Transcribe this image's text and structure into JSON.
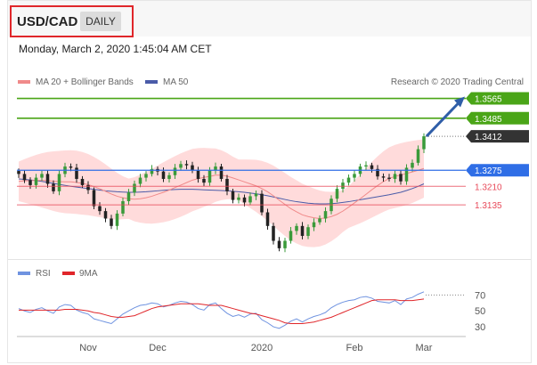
{
  "header": {
    "symbol": "USD/CAD",
    "period": "DAILY",
    "datetime": "Monday, March 2, 2020 1:45:04 AM CET"
  },
  "legend": {
    "ma20_label": "MA 20 + Bollinger Bands",
    "ma50_label": "MA 50",
    "credit": "Research © 2020 Trading Central"
  },
  "rsi_legend": {
    "rsi_label": "RSI",
    "ma9_label": "9MA"
  },
  "colors": {
    "green": "#4aa517",
    "blue": "#2f6ee6",
    "red": "#e84a5a",
    "dark": "#333333",
    "arrow": "#2f5ea8",
    "ma50": "#4a5ba8",
    "bollinger": "#ffd5d5",
    "rsi": "#6f93e0",
    "ma9": "#e0262a"
  },
  "chart_data": {
    "type": "candlestick",
    "price_axis_range": [
      1.292,
      1.361
    ],
    "levels": [
      {
        "value": 1.3565,
        "label": "1.3565",
        "style": "resistance-green"
      },
      {
        "value": 1.3485,
        "label": "1.3485",
        "style": "resistance-green"
      },
      {
        "value": 1.3412,
        "label": "1.3412",
        "style": "last-price"
      },
      {
        "value": 1.3275,
        "label": "1.3275",
        "style": "pivot-blue"
      },
      {
        "value": 1.321,
        "label": "1.3210",
        "style": "support-red"
      },
      {
        "value": 1.3135,
        "label": "1.3135",
        "style": "support-red"
      }
    ],
    "close_series": [
      1.326,
      1.3235,
      1.3215,
      1.3245,
      1.326,
      1.322,
      1.319,
      1.326,
      1.329,
      1.3285,
      1.324,
      1.3215,
      1.3195,
      1.313,
      1.311,
      1.308,
      1.305,
      1.31,
      1.315,
      1.3185,
      1.322,
      1.3245,
      1.326,
      1.328,
      1.327,
      1.324,
      1.3255,
      1.3285,
      1.33,
      1.3295,
      1.3275,
      1.324,
      1.3225,
      1.3275,
      1.329,
      1.324,
      1.319,
      1.3155,
      1.3165,
      1.3145,
      1.317,
      1.318,
      1.3105,
      1.305,
      1.299,
      1.296,
      1.299,
      1.303,
      1.305,
      1.301,
      1.3045,
      1.3065,
      1.308,
      1.311,
      1.316,
      1.32,
      1.3225,
      1.3245,
      1.326,
      1.329,
      1.3295,
      1.328,
      1.325,
      1.3245,
      1.324,
      1.326,
      1.323,
      1.3285,
      1.3305,
      1.336,
      1.3412
    ],
    "ma50_series": [
      1.324,
      1.3238,
      1.3236,
      1.3233,
      1.323,
      1.3226,
      1.3222,
      1.3218,
      1.3214,
      1.321,
      1.3207,
      1.3204,
      1.3201,
      1.3198,
      1.3195,
      1.3192,
      1.319,
      1.3188,
      1.3187,
      1.3186,
      1.3186,
      1.3187,
      1.3188,
      1.319,
      1.3192,
      1.3194,
      1.3196,
      1.3197,
      1.3198,
      1.3198,
      1.3198,
      1.3197,
      1.3196,
      1.3195,
      1.3194,
      1.3193,
      1.3192,
      1.319,
      1.3188,
      1.3186,
      1.3183,
      1.318,
      1.3176,
      1.3172,
      1.3167,
      1.3162,
      1.3157,
      1.3152,
      1.3148,
      1.3145,
      1.3142,
      1.314,
      1.3139,
      1.3139,
      1.314,
      1.3142,
      1.3145,
      1.3148,
      1.3152,
      1.3156,
      1.316,
      1.3164,
      1.3168,
      1.3172,
      1.3176,
      1.3181,
      1.3186,
      1.3193,
      1.3201,
      1.321,
      1.322
    ],
    "ma20_series": [
      1.323,
      1.3232,
      1.3233,
      1.3234,
      1.3234,
      1.3233,
      1.3231,
      1.3229,
      1.3228,
      1.3228,
      1.3226,
      1.3222,
      1.3217,
      1.3209,
      1.32,
      1.319,
      1.3179,
      1.317,
      1.3164,
      1.316,
      1.3158,
      1.316,
      1.3164,
      1.317,
      1.3178,
      1.3186,
      1.3195,
      1.3205,
      1.3215,
      1.3225,
      1.3235,
      1.3241,
      1.3246,
      1.325,
      1.3255,
      1.3255,
      1.3251,
      1.3244,
      1.3236,
      1.3228,
      1.322,
      1.3212,
      1.3201,
      1.3188,
      1.3172,
      1.3154,
      1.3137,
      1.312,
      1.3107,
      1.3095,
      1.3088,
      1.3083,
      1.308,
      1.3082,
      1.3088,
      1.3097,
      1.311,
      1.3126,
      1.3143,
      1.316,
      1.3178,
      1.3196,
      1.3213,
      1.3229,
      1.3242,
      1.325,
      1.3256,
      1.3262,
      1.3268,
      1.3275,
      1.3282
    ],
    "bollinger_width": 0.008,
    "x_tick_labels": [
      "Nov",
      "Dec",
      "2020",
      "Feb",
      "Mar"
    ],
    "x_tick_positions": [
      12,
      24,
      42,
      58,
      70
    ],
    "projection": {
      "from_index": 70,
      "from_value": 1.3412,
      "to_value": 1.3565
    },
    "rsi": {
      "axis_range": [
        20,
        85
      ],
      "tick_labels": [
        "70",
        "50",
        "30"
      ],
      "tick_values": [
        70,
        50,
        30
      ],
      "rsi_series": [
        53,
        50,
        48,
        52,
        54,
        50,
        47,
        55,
        58,
        57,
        51,
        48,
        46,
        40,
        38,
        36,
        34,
        40,
        46,
        50,
        54,
        57,
        58,
        60,
        59,
        55,
        57,
        60,
        62,
        61,
        58,
        53,
        51,
        58,
        60,
        53,
        47,
        43,
        45,
        42,
        46,
        47,
        39,
        35,
        30,
        28,
        32,
        37,
        40,
        36,
        40,
        43,
        45,
        48,
        54,
        58,
        61,
        63,
        64,
        67,
        68,
        66,
        62,
        61,
        60,
        63,
        58,
        65,
        67,
        71,
        74
      ],
      "ma9_series": [
        51,
        51,
        51,
        51,
        51,
        51,
        51,
        51,
        52,
        52,
        52,
        51,
        50,
        48,
        47,
        45,
        43,
        42,
        42,
        43,
        44,
        47,
        50,
        53,
        55,
        56,
        57,
        58,
        59,
        59,
        59,
        59,
        58,
        57,
        57,
        57,
        55,
        53,
        51,
        49,
        47,
        46,
        44,
        42,
        40,
        38,
        35,
        34,
        34,
        34,
        35,
        36,
        38,
        40,
        42,
        45,
        48,
        51,
        54,
        57,
        60,
        63,
        64,
        64,
        64,
        64,
        63,
        63,
        63,
        64,
        65
      ]
    }
  }
}
